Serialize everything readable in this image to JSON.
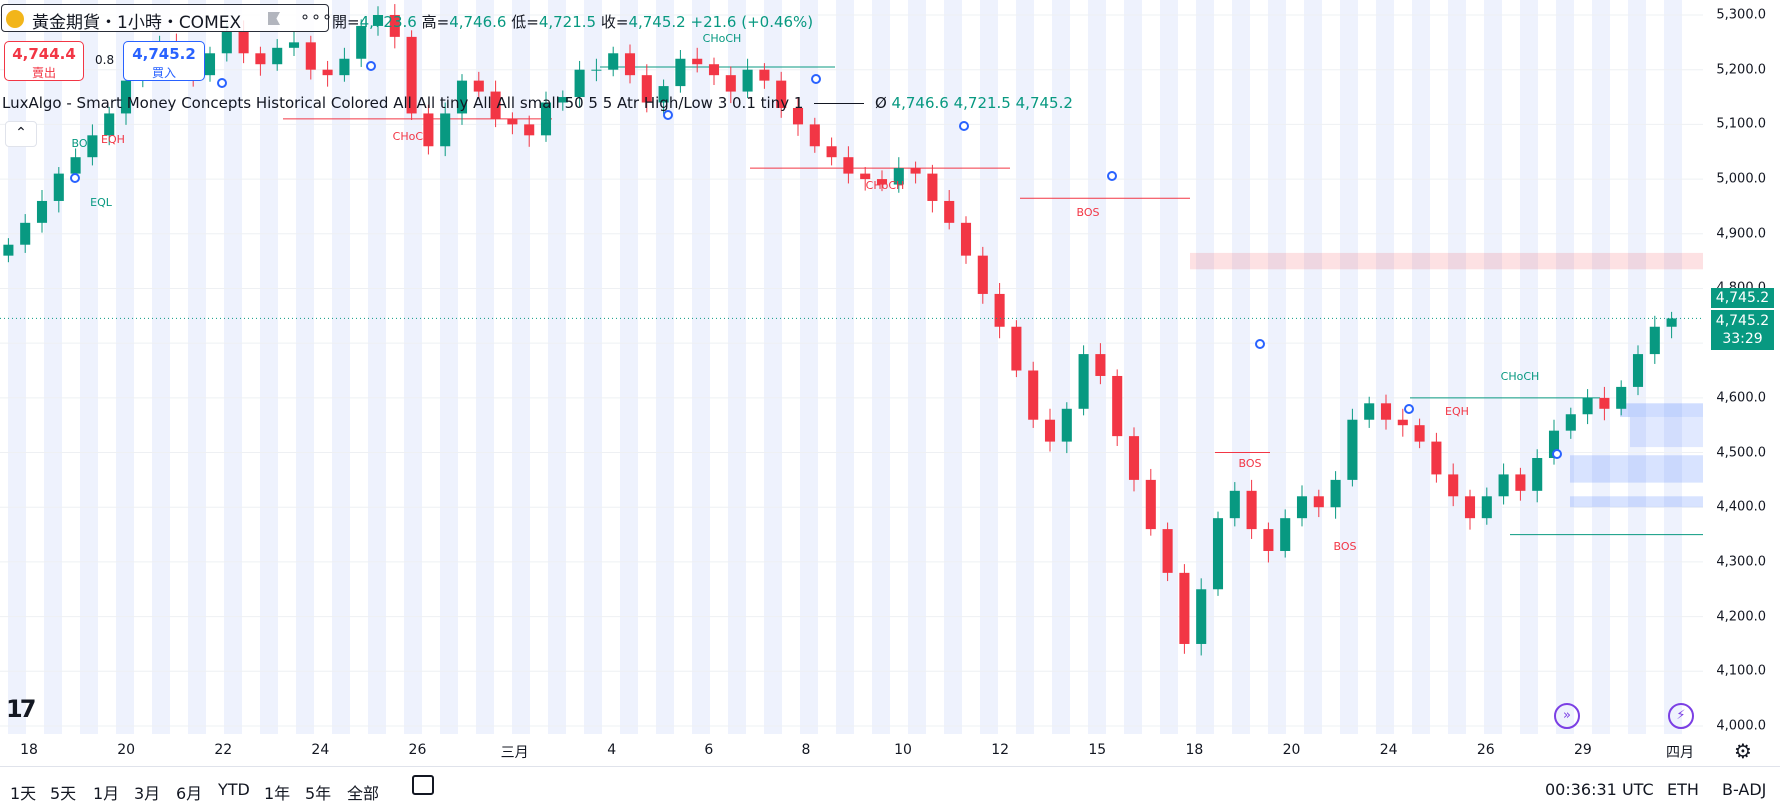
{
  "header": {
    "symbol_title": "黃金期貨・1小時・COMEX",
    "more_label": "∘∘∘",
    "ohlc": {
      "open_label": "開=",
      "open": "4,723.6",
      "high_label": "高=",
      "high": "4,746.6",
      "low_label": "低=",
      "low": "4,721.5",
      "close_label": "收=",
      "close": "4,745.2",
      "change": "+21.6 (+0.46%)"
    }
  },
  "trade": {
    "sell_price": "4,744.4",
    "sell_label": "賣出",
    "spread": "0.8",
    "buy_price": "4,745.2",
    "buy_label": "買入"
  },
  "indicator": {
    "name": "LuxAlgo - Smart Money Concepts Historical Colored All All tiny All All small 50 5 5 Atr High/Low 3 0.1 tiny 1",
    "sep": "Ø",
    "v1": "4,746.6",
    "v2": "4,721.5",
    "v3": "4,745.2"
  },
  "collapse_icon": "chevron-up-icon",
  "price_axis": {
    "ticks": [
      "5,300.0",
      "5,200.0",
      "5,100.0",
      "5,000.0",
      "4,900.0",
      "4,800.0",
      "4,700.0",
      "4,600.0",
      "4,500.0",
      "4,400.0",
      "4,300.0",
      "4,200.0",
      "4,100.0",
      "4,000.0"
    ],
    "last_price": "4,745.2",
    "last_price_2": "4,745.2",
    "countdown": "33:29"
  },
  "time_axis": {
    "ticks": [
      "18",
      "20",
      "22",
      "24",
      "26",
      "三月",
      "4",
      "6",
      "8",
      "10",
      "12",
      "15",
      "18",
      "20",
      "24",
      "26",
      "29",
      "四月"
    ]
  },
  "range_buttons": [
    "1天",
    "5天",
    "1月",
    "3月",
    "6月",
    "YTD",
    "1年",
    "5年",
    "全部"
  ],
  "status": {
    "clock": "00:36:31 UTC",
    "session": "ETH",
    "adjust": "B-ADJ"
  },
  "colors": {
    "up": "#089981",
    "down": "#f23645",
    "accent": "#2962ff",
    "purple": "#7b3fe4"
  },
  "chart_data": {
    "type": "candlestick",
    "title": "黃金期貨・1小時・COMEX",
    "ylim": [
      4000,
      5330
    ],
    "x": [
      "18",
      "20",
      "22",
      "24",
      "26",
      "三月",
      "4",
      "6",
      "8",
      "10",
      "12",
      "15",
      "18",
      "20",
      "24",
      "26",
      "29",
      "四月"
    ],
    "closes": [
      4880,
      4920,
      4960,
      5010,
      5040,
      5080,
      5120,
      5180,
      5210,
      5250,
      5220,
      5190,
      5230,
      5270,
      5230,
      5210,
      5240,
      5250,
      5200,
      5190,
      5220,
      5280,
      5300,
      5260,
      5120,
      5060,
      5120,
      5180,
      5160,
      5110,
      5100,
      5080,
      5140,
      5150,
      5200,
      5200,
      5230,
      5190,
      5140,
      5170,
      5220,
      5210,
      5190,
      5160,
      5200,
      5180,
      5130,
      5100,
      5060,
      5040,
      5010,
      5000,
      4990,
      5020,
      5010,
      4960,
      4920,
      4860,
      4790,
      4730,
      4650,
      4560,
      4520,
      4580,
      4680,
      4640,
      4530,
      4450,
      4360,
      4280,
      4150,
      4250,
      4380,
      4430,
      4360,
      4320,
      4380,
      4420,
      4400,
      4450,
      4560,
      4590,
      4560,
      4550,
      4520,
      4460,
      4420,
      4380,
      4420,
      4460,
      4430,
      4490,
      4540,
      4570,
      4600,
      4580,
      4620,
      4680,
      4730,
      4745.2
    ],
    "annotations": [
      "CHoCH",
      "BOS",
      "EQH",
      "EQL"
    ]
  }
}
